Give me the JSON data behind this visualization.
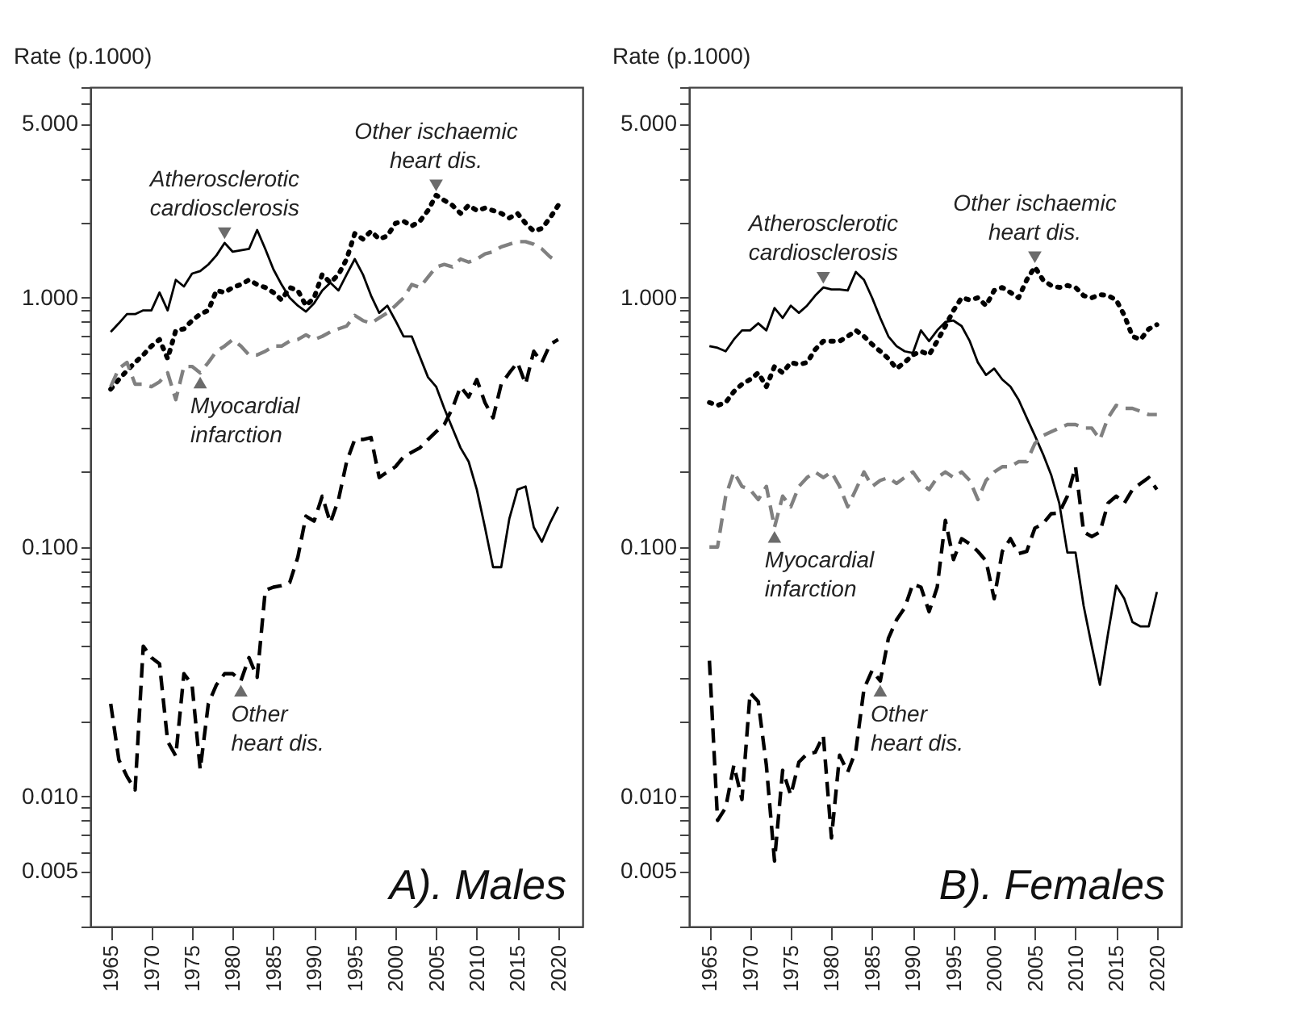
{
  "chart_data": [
    {
      "type": "line",
      "title": "A). Males",
      "ylabel": "Rate (p.1000)",
      "log": true,
      "xlim": [
        1962.5,
        2023
      ],
      "xticks": [
        1965,
        1970,
        1975,
        1980,
        1985,
        1990,
        1995,
        2000,
        2005,
        2010,
        2015,
        2020
      ],
      "ylim": [
        0.003,
        7
      ],
      "yticks": [
        {
          "value": 0.003,
          "label": null
        },
        {
          "value": 0.004,
          "label": null
        },
        {
          "value": 0.005,
          "label": "0.005"
        },
        {
          "value": 0.006,
          "label": null
        },
        {
          "value": 0.007,
          "label": null
        },
        {
          "value": 0.008,
          "label": null
        },
        {
          "value": 0.009,
          "label": null
        },
        {
          "value": 0.01,
          "label": "0.010"
        },
        {
          "value": 0.02,
          "label": null
        },
        {
          "value": 0.03,
          "label": null
        },
        {
          "value": 0.04,
          "label": null
        },
        {
          "value": 0.05,
          "label": null
        },
        {
          "value": 0.06,
          "label": null
        },
        {
          "value": 0.07,
          "label": null
        },
        {
          "value": 0.08,
          "label": null
        },
        {
          "value": 0.09,
          "label": null
        },
        {
          "value": 0.1,
          "label": "0.100"
        },
        {
          "value": 0.2,
          "label": null
        },
        {
          "value": 0.3,
          "label": null
        },
        {
          "value": 0.4,
          "label": null
        },
        {
          "value": 0.5,
          "label": null
        },
        {
          "value": 0.6,
          "label": null
        },
        {
          "value": 0.7,
          "label": null
        },
        {
          "value": 0.8,
          "label": null
        },
        {
          "value": 0.9,
          "label": null
        },
        {
          "value": 1,
          "label": "1.000"
        },
        {
          "value": 2,
          "label": null
        },
        {
          "value": 3,
          "label": null
        },
        {
          "value": 4,
          "label": null
        },
        {
          "value": 5,
          "label": "5.000"
        },
        {
          "value": 6,
          "label": null
        },
        {
          "value": 7,
          "label": null
        }
      ],
      "x": [
        1965,
        1966,
        1967,
        1968,
        1969,
        1970,
        1971,
        1972,
        1973,
        1974,
        1975,
        1976,
        1977,
        1978,
        1979,
        1980,
        1981,
        1982,
        1983,
        1984,
        1985,
        1986,
        1987,
        1988,
        1989,
        1990,
        1991,
        1992,
        1993,
        1994,
        1995,
        1996,
        1997,
        1998,
        1999,
        2000,
        2001,
        2002,
        2003,
        2004,
        2005,
        2006,
        2007,
        2008,
        2009,
        2010,
        2011,
        2012,
        2013,
        2014,
        2015,
        2016,
        2017,
        2018,
        2019,
        2020
      ],
      "series": [
        {
          "color": "#000000",
          "line_style": "solid",
          "values": [
            0.73,
            0.79,
            0.86,
            0.86,
            0.89,
            0.89,
            1.05,
            0.89,
            1.18,
            1.11,
            1.25,
            1.28,
            1.36,
            1.48,
            1.66,
            1.53,
            1.55,
            1.57,
            1.87,
            1.57,
            1.3,
            1.13,
            1.0,
            0.93,
            0.88,
            0.95,
            1.07,
            1.15,
            1.07,
            1.24,
            1.43,
            1.24,
            1.02,
            0.87,
            0.93,
            0.81,
            0.7,
            0.7,
            0.58,
            0.48,
            0.44,
            0.36,
            0.3,
            0.25,
            0.22,
            0.17,
            0.12,
            0.083,
            0.083,
            0.13,
            0.17,
            0.175,
            0.12,
            0.105,
            0.125,
            0.145
          ]
        },
        {
          "color": "#000000",
          "line_style": "dotted",
          "values": [
            0.43,
            0.47,
            0.51,
            0.55,
            0.59,
            0.64,
            0.68,
            0.57,
            0.74,
            0.75,
            0.81,
            0.86,
            0.89,
            1.07,
            1.05,
            1.1,
            1.13,
            1.18,
            1.13,
            1.1,
            1.05,
            0.98,
            1.1,
            1.07,
            0.93,
            1.0,
            1.24,
            1.15,
            1.24,
            1.43,
            1.81,
            1.72,
            1.85,
            1.72,
            1.77,
            1.99,
            2.03,
            1.94,
            2.03,
            2.24,
            2.58,
            2.46,
            2.35,
            2.18,
            2.35,
            2.24,
            2.29,
            2.24,
            2.18,
            2.09,
            2.18,
            1.99,
            1.85,
            1.9,
            2.09,
            2.35
          ]
        },
        {
          "color": "#808080",
          "line_style": "dashed",
          "values": [
            0.44,
            0.52,
            0.55,
            0.45,
            0.45,
            0.44,
            0.46,
            0.5,
            0.39,
            0.53,
            0.53,
            0.5,
            0.55,
            0.61,
            0.64,
            0.68,
            0.64,
            0.59,
            0.59,
            0.61,
            0.64,
            0.64,
            0.67,
            0.68,
            0.71,
            0.68,
            0.7,
            0.73,
            0.75,
            0.77,
            0.85,
            0.81,
            0.79,
            0.83,
            0.87,
            0.93,
            1.0,
            1.13,
            1.1,
            1.21,
            1.33,
            1.36,
            1.33,
            1.43,
            1.39,
            1.43,
            1.5,
            1.53,
            1.6,
            1.64,
            1.68,
            1.68,
            1.64,
            1.57,
            1.46,
            1.39
          ]
        },
        {
          "color": "#000000",
          "line_style": "dashed",
          "values": [
            0.0235,
            0.014,
            0.012,
            0.0106,
            0.04,
            0.036,
            0.034,
            0.0166,
            0.0145,
            0.031,
            0.028,
            0.0128,
            0.0235,
            0.028,
            0.031,
            0.031,
            0.029,
            0.036,
            0.03,
            0.067,
            0.069,
            0.07,
            0.072,
            0.091,
            0.133,
            0.127,
            0.16,
            0.125,
            0.155,
            0.22,
            0.27,
            0.27,
            0.275,
            0.19,
            0.2,
            0.21,
            0.23,
            0.24,
            0.25,
            0.27,
            0.29,
            0.31,
            0.36,
            0.44,
            0.4,
            0.47,
            0.38,
            0.33,
            0.45,
            0.5,
            0.55,
            0.45,
            0.61,
            0.55,
            0.65,
            0.68
          ]
        }
      ],
      "annotations": [
        {
          "text": "Atherosclerotic cardiosclerosis",
          "x": 1979,
          "y": 1.66
        },
        {
          "text": "Other ischaemic heart dis.",
          "x": 2005,
          "y": 2.58
        },
        {
          "text": "Myocardial infarction",
          "x": 1976,
          "y": 0.5
        },
        {
          "text": "Other heart dis.",
          "x": 1981,
          "y": 0.029
        }
      ]
    },
    {
      "type": "line",
      "title": "B). Females",
      "ylabel": "Rate (p.1000)",
      "log": true,
      "xlim": [
        1962.5,
        2023
      ],
      "xticks": [
        1965,
        1970,
        1975,
        1980,
        1985,
        1990,
        1995,
        2000,
        2005,
        2010,
        2015,
        2020
      ],
      "ylim": [
        0.003,
        7
      ],
      "yticks": [
        {
          "value": 0.003,
          "label": null
        },
        {
          "value": 0.004,
          "label": null
        },
        {
          "value": 0.005,
          "label": "0.005"
        },
        {
          "value": 0.006,
          "label": null
        },
        {
          "value": 0.007,
          "label": null
        },
        {
          "value": 0.008,
          "label": null
        },
        {
          "value": 0.009,
          "label": null
        },
        {
          "value": 0.01,
          "label": "0.010"
        },
        {
          "value": 0.02,
          "label": null
        },
        {
          "value": 0.03,
          "label": null
        },
        {
          "value": 0.04,
          "label": null
        },
        {
          "value": 0.05,
          "label": null
        },
        {
          "value": 0.06,
          "label": null
        },
        {
          "value": 0.07,
          "label": null
        },
        {
          "value": 0.08,
          "label": null
        },
        {
          "value": 0.09,
          "label": null
        },
        {
          "value": 0.1,
          "label": "0.100"
        },
        {
          "value": 0.2,
          "label": null
        },
        {
          "value": 0.3,
          "label": null
        },
        {
          "value": 0.4,
          "label": null
        },
        {
          "value": 0.5,
          "label": null
        },
        {
          "value": 0.6,
          "label": null
        },
        {
          "value": 0.7,
          "label": null
        },
        {
          "value": 0.8,
          "label": null
        },
        {
          "value": 0.9,
          "label": null
        },
        {
          "value": 1,
          "label": "1.000"
        },
        {
          "value": 2,
          "label": null
        },
        {
          "value": 3,
          "label": null
        },
        {
          "value": 4,
          "label": null
        },
        {
          "value": 5,
          "label": "5.000"
        },
        {
          "value": 6,
          "label": null
        },
        {
          "value": 7,
          "label": null
        }
      ],
      "x": [
        1965,
        1966,
        1967,
        1968,
        1969,
        1970,
        1971,
        1972,
        1973,
        1974,
        1975,
        1976,
        1977,
        1978,
        1979,
        1980,
        1981,
        1982,
        1983,
        1984,
        1985,
        1986,
        1987,
        1988,
        1989,
        1990,
        1991,
        1992,
        1993,
        1994,
        1995,
        1996,
        1997,
        1998,
        1999,
        2000,
        2001,
        2002,
        2003,
        2004,
        2005,
        2006,
        2007,
        2008,
        2009,
        2010,
        2011,
        2012,
        2013,
        2014,
        2015,
        2016,
        2017,
        2018,
        2019,
        2020
      ],
      "series": [
        {
          "color": "#000000",
          "line_style": "solid",
          "values": [
            0.64,
            0.63,
            0.61,
            0.68,
            0.74,
            0.74,
            0.79,
            0.74,
            0.91,
            0.83,
            0.93,
            0.87,
            0.93,
            1.02,
            1.1,
            1.08,
            1.08,
            1.07,
            1.27,
            1.18,
            1.0,
            0.83,
            0.7,
            0.64,
            0.61,
            0.6,
            0.74,
            0.67,
            0.74,
            0.8,
            0.81,
            0.77,
            0.67,
            0.55,
            0.49,
            0.52,
            0.47,
            0.44,
            0.39,
            0.33,
            0.28,
            0.236,
            0.195,
            0.15,
            0.095,
            0.095,
            0.058,
            0.04,
            0.028,
            0.045,
            0.07,
            0.062,
            0.05,
            0.048,
            0.048,
            0.066
          ]
        },
        {
          "color": "#000000",
          "line_style": "dotted",
          "values": [
            0.38,
            0.37,
            0.38,
            0.42,
            0.45,
            0.47,
            0.5,
            0.44,
            0.53,
            0.5,
            0.55,
            0.54,
            0.55,
            0.62,
            0.67,
            0.67,
            0.67,
            0.7,
            0.74,
            0.7,
            0.65,
            0.61,
            0.57,
            0.52,
            0.55,
            0.59,
            0.61,
            0.59,
            0.67,
            0.77,
            0.89,
            1.0,
            0.98,
            1.0,
            0.93,
            1.07,
            1.1,
            1.05,
            1.0,
            1.18,
            1.33,
            1.18,
            1.12,
            1.1,
            1.12,
            1.1,
            1.02,
            1.0,
            1.03,
            1.02,
            0.98,
            0.85,
            0.7,
            0.68,
            0.75,
            0.78
          ]
        },
        {
          "color": "#808080",
          "line_style": "dashed",
          "values": [
            0.1,
            0.1,
            0.16,
            0.2,
            0.175,
            0.17,
            0.155,
            0.175,
            0.12,
            0.16,
            0.145,
            0.175,
            0.19,
            0.2,
            0.19,
            0.2,
            0.175,
            0.145,
            0.17,
            0.2,
            0.175,
            0.185,
            0.19,
            0.18,
            0.19,
            0.2,
            0.18,
            0.17,
            0.19,
            0.2,
            0.19,
            0.2,
            0.185,
            0.155,
            0.185,
            0.2,
            0.21,
            0.21,
            0.22,
            0.22,
            0.26,
            0.28,
            0.29,
            0.3,
            0.31,
            0.31,
            0.3,
            0.3,
            0.27,
            0.33,
            0.37,
            0.36,
            0.36,
            0.35,
            0.34,
            0.34
          ]
        },
        {
          "color": "#000000",
          "line_style": "dashed",
          "values": [
            0.035,
            0.008,
            0.009,
            0.0133,
            0.0097,
            0.026,
            0.024,
            0.0133,
            0.0055,
            0.0127,
            0.0101,
            0.0137,
            0.0148,
            0.015,
            0.0175,
            0.0068,
            0.0146,
            0.0125,
            0.0152,
            0.027,
            0.032,
            0.029,
            0.043,
            0.051,
            0.057,
            0.071,
            0.069,
            0.055,
            0.069,
            0.128,
            0.089,
            0.108,
            0.103,
            0.096,
            0.088,
            0.062,
            0.096,
            0.108,
            0.094,
            0.096,
            0.119,
            0.124,
            0.136,
            0.137,
            0.16,
            0.21,
            0.115,
            0.11,
            0.115,
            0.15,
            0.16,
            0.15,
            0.17,
            0.18,
            0.19,
            0.17
          ]
        }
      ],
      "annotations": [
        {
          "text": "Atherosclerotic cardiosclerosis",
          "x": 1979,
          "y": 1.1
        },
        {
          "text": "Other ischaemic heart dis.",
          "x": 2005,
          "y": 1.33
        },
        {
          "text": "Myocardial infarction",
          "x": 1973,
          "y": 0.12
        },
        {
          "text": "Other heart dis.",
          "x": 1986,
          "y": 0.029
        }
      ]
    }
  ]
}
